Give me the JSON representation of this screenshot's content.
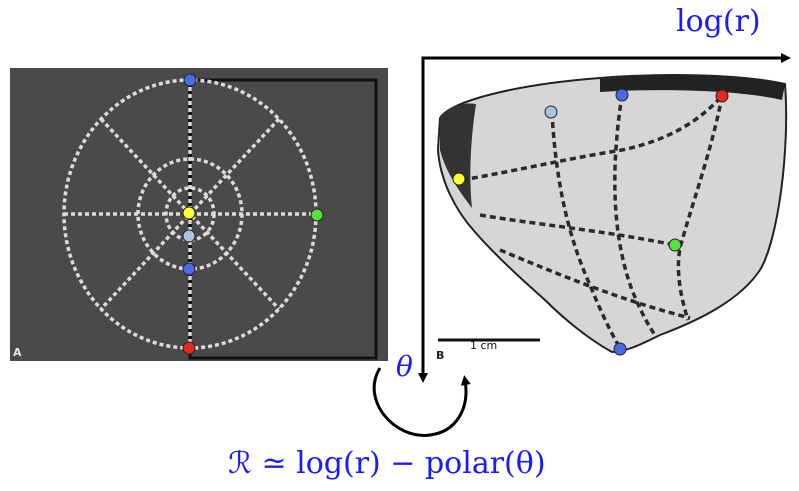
{
  "labels": {
    "log_r": "log(r)",
    "theta": "θ",
    "formula": "ℛ ≃ log(r) − polar(θ)",
    "panel_a": "A",
    "panel_b": "B",
    "scale_bar": "1 cm"
  },
  "colors": {
    "math_text": "#1a1aff",
    "marker_blue": "#4a6ae8",
    "marker_lightblue": "#a9c4e0",
    "marker_yellow": "#ffff33",
    "marker_green": "#55e03a",
    "marker_red": "#e8281e",
    "panel_a_bg": "#4a4a4a",
    "arrows": "#000000"
  },
  "markers": {
    "panel_a": [
      "blue-top",
      "yellow-center",
      "lightblue-center",
      "blue-lower",
      "green-right",
      "red-bottom"
    ],
    "panel_b": [
      "lightblue",
      "blue-top",
      "red-top",
      "yellow-left",
      "green-right",
      "blue-bottom"
    ]
  }
}
